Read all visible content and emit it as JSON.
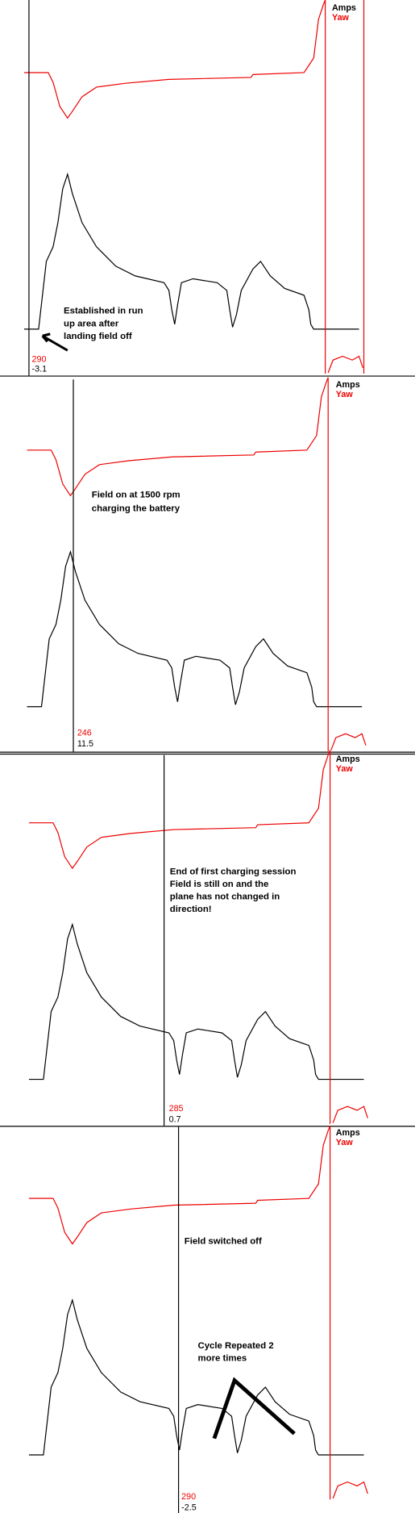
{
  "panels": [
    {
      "legend": [
        "Amps",
        "Yaw"
      ],
      "cursor": [
        "290",
        "-3.1"
      ],
      "annotation": [
        "Established in run",
        "up area after",
        "landing field off"
      ]
    },
    {
      "legend": [
        "Amps",
        "Yaw"
      ],
      "cursor": [
        "246",
        "11.5"
      ],
      "annotation": [
        "Field on at 1500 rpm",
        "charging the battery"
      ]
    },
    {
      "legend": [
        "Amps",
        "Yaw"
      ],
      "cursor": [
        "285",
        "0.7"
      ],
      "annotation": [
        "End of first charging session",
        "Field is still on and the",
        "plane has not changed in",
        "direction!"
      ]
    },
    {
      "legend": [
        "Amps",
        "Yaw"
      ],
      "cursor": [
        "290",
        "-2.5"
      ],
      "annotation": [
        "Field switched off",
        "Cycle Repeated 2",
        "more times"
      ]
    }
  ]
}
